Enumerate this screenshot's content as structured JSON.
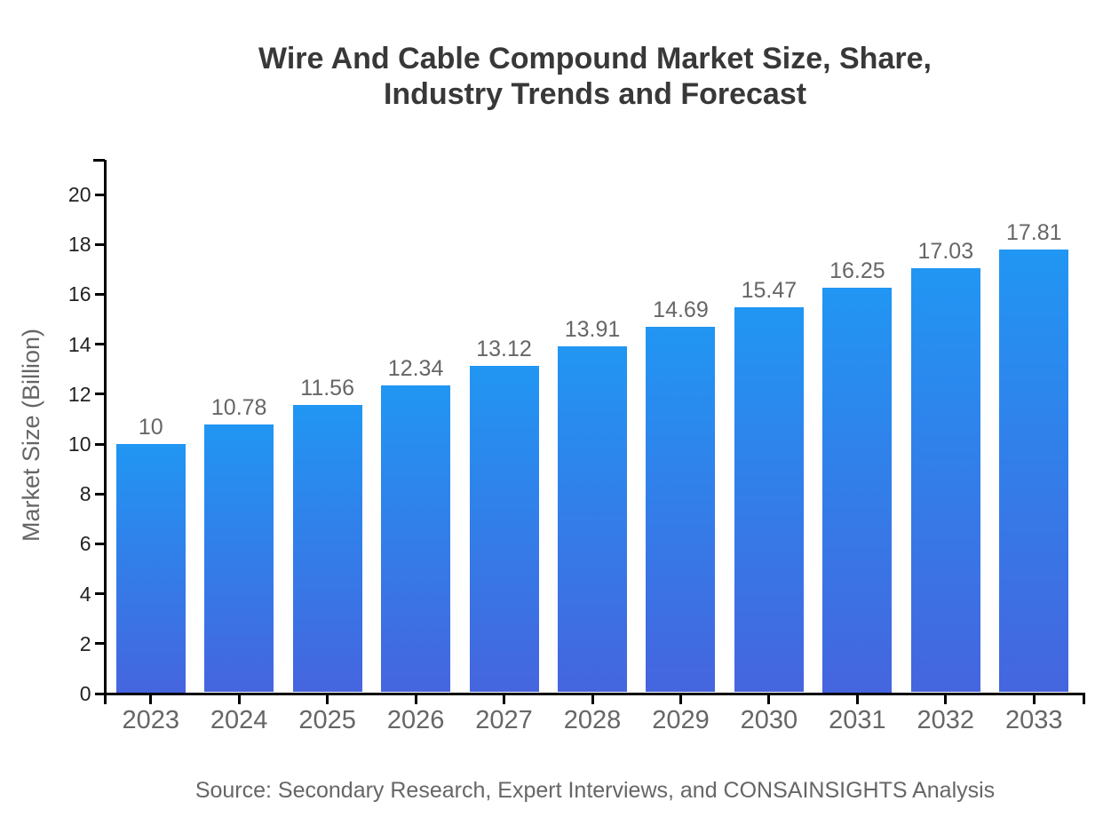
{
  "page": {
    "background": "#ffffff"
  },
  "chart_data": {
    "type": "bar",
    "title": "Wire And Cable Compound Market Size, Share, Industry Trends and Forecast",
    "title_lines": [
      "Wire And Cable Compound Market Size, Share,",
      "Industry Trends and Forecast"
    ],
    "xlabel": "",
    "ylabel": "Market Size (Billion)",
    "categories": [
      "2023",
      "2024",
      "2025",
      "2026",
      "2027",
      "2028",
      "2029",
      "2030",
      "2031",
      "2032",
      "2033"
    ],
    "values": [
      10,
      10.78,
      11.56,
      12.34,
      13.12,
      13.91,
      14.69,
      15.47,
      16.25,
      17.03,
      17.81
    ],
    "value_labels": [
      "10",
      "10.78",
      "11.56",
      "12.34",
      "13.12",
      "13.91",
      "14.69",
      "15.47",
      "16.25",
      "17.03",
      "17.81"
    ],
    "ylim": [
      0,
      21.4
    ],
    "yticks": [
      0,
      2,
      4,
      6,
      8,
      10,
      12,
      14,
      16,
      18,
      20
    ],
    "ytick_labels": [
      "0",
      "2",
      "4",
      "6",
      "8",
      "10",
      "12",
      "14",
      "16",
      "18",
      "20"
    ],
    "grid": false,
    "legend_position": "none",
    "colors": {
      "bar_gradient_top": "#2196f3",
      "bar_gradient_bottom": "#4565de",
      "axis": "#000000",
      "title_text": "#383838",
      "ytick_text": "#222222",
      "xtick_text": "#666666",
      "value_label_text": "#666666",
      "source_text": "#666666"
    },
    "source": "Source: Secondary Research, Expert Interviews, and CONSAINSIGHTS Analysis"
  }
}
